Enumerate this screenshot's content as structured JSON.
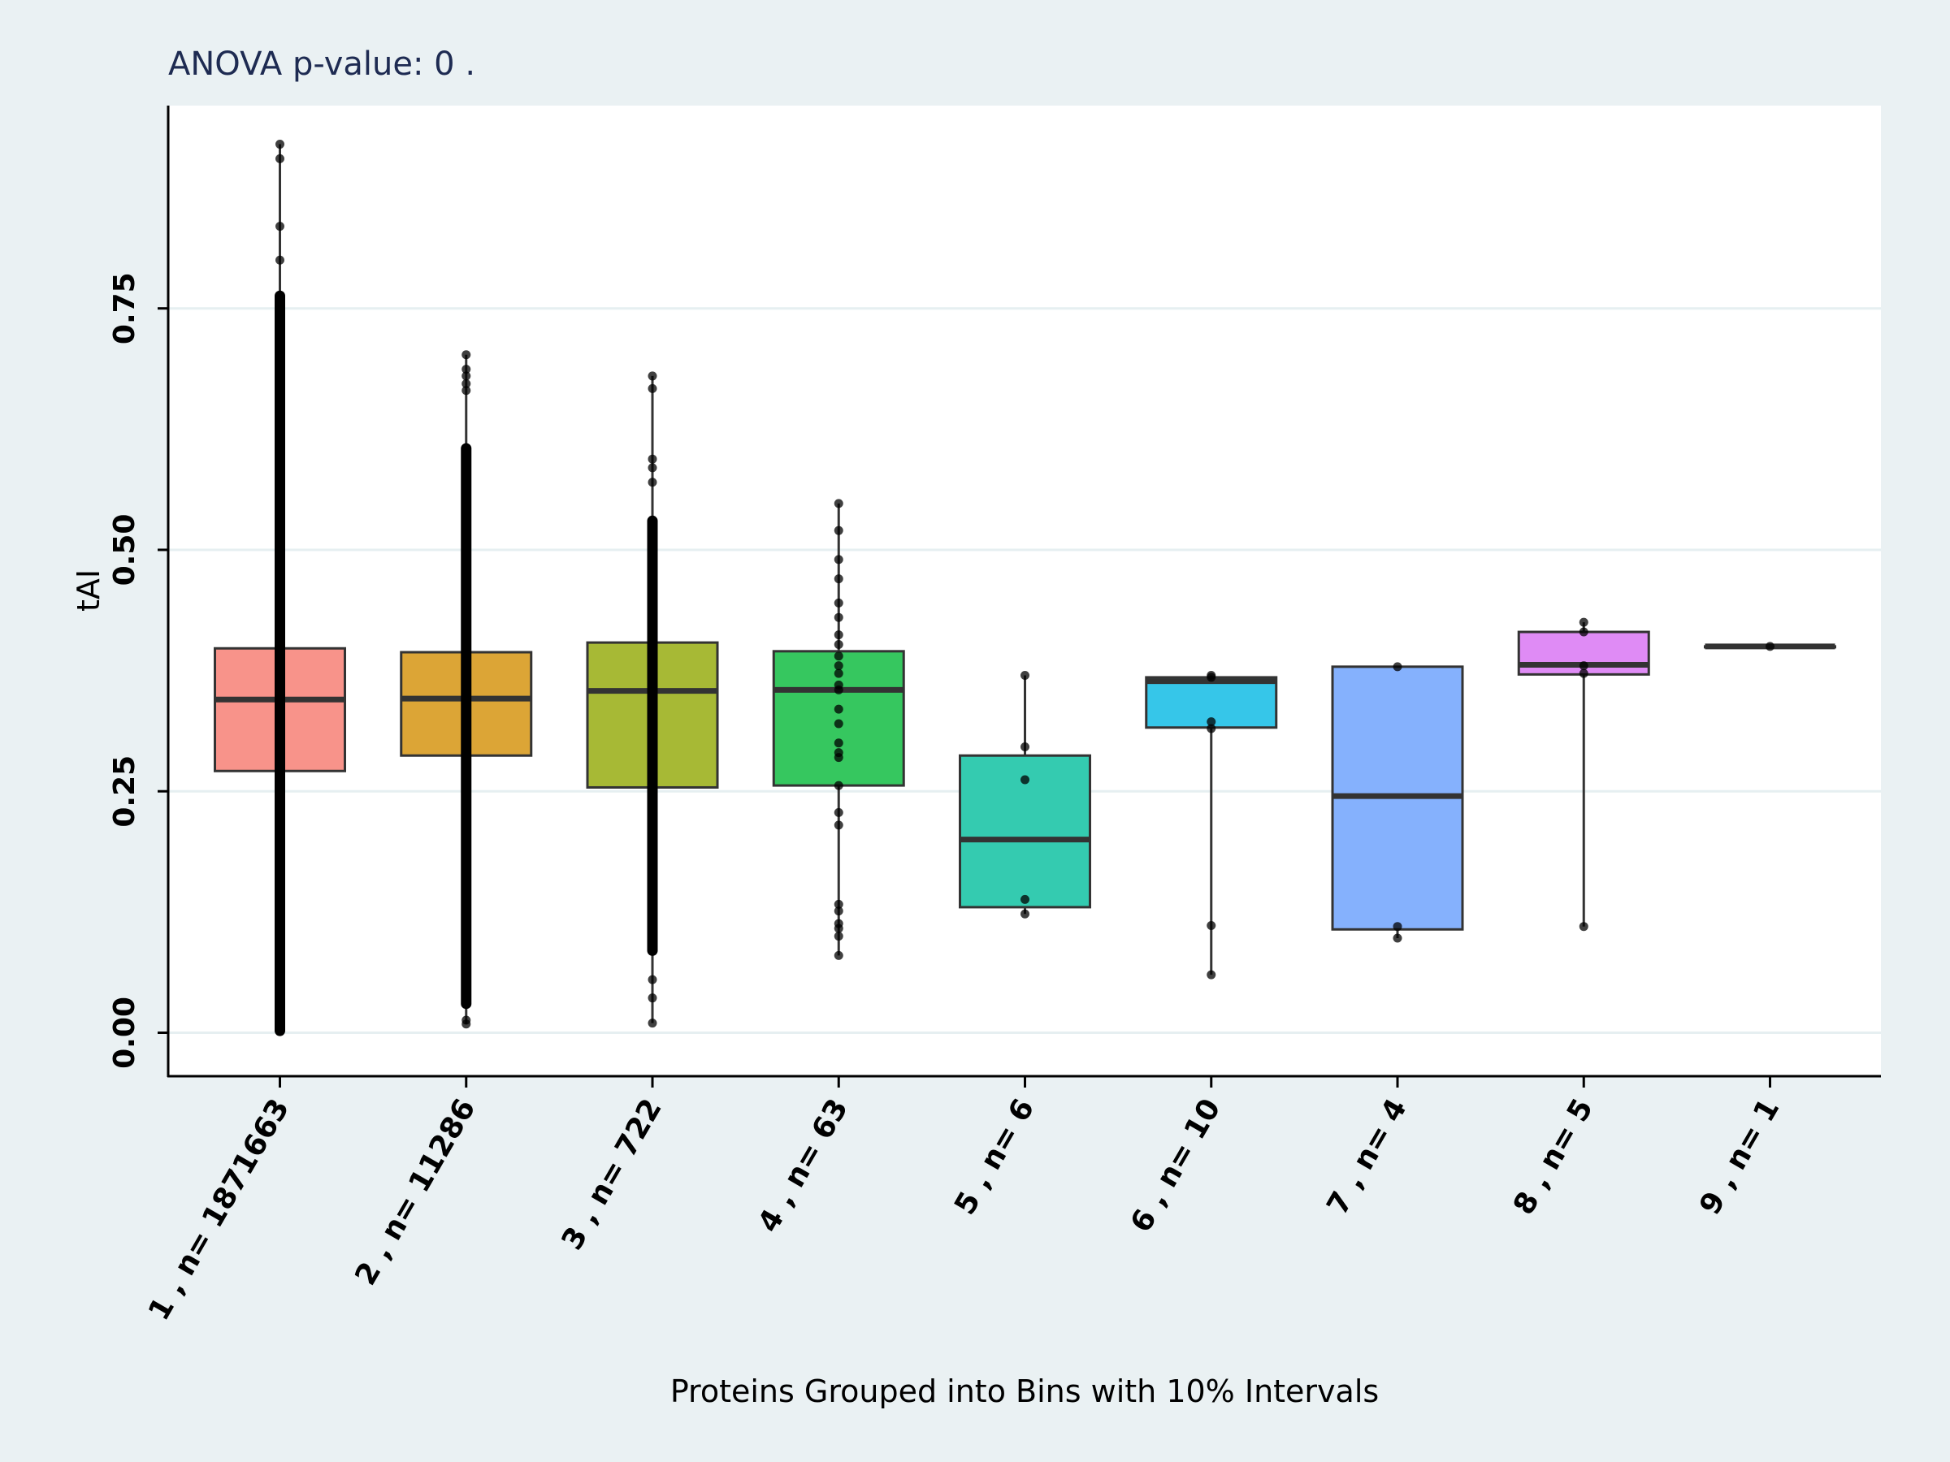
{
  "chart_data": {
    "type": "box",
    "title": "ANOVA p-value:  0 .",
    "xlabel": "Proteins Grouped into Bins with 10% Intervals",
    "ylabel": "tAI",
    "ylim": [
      -0.045,
      0.96
    ],
    "yticks": [
      0.0,
      0.25,
      0.5,
      0.75
    ],
    "ytick_labels": [
      "0.00",
      "0.25",
      "0.50",
      "0.75"
    ],
    "grid": true,
    "categories": [
      "1 , n= 1871663",
      "2 , n= 11286",
      "3 , n= 722",
      "4 , n= 63",
      "5 , n= 6",
      "6 , n= 10",
      "7 , n= 4",
      "8 , n= 5",
      "9 , n= 1"
    ],
    "series": [
      {
        "label": "1 , n= 1871663",
        "color": "#f8938a",
        "q1": 0.271,
        "median": 0.345,
        "q3": 0.398,
        "points": {
          "dense": [
            0.002,
            0.763
          ],
          "sparse": [
            0.8,
            0.835,
            0.905,
            0.92
          ]
        }
      },
      {
        "label": "2 , n= 11286",
        "color": "#dca536",
        "q1": 0.287,
        "median": 0.346,
        "q3": 0.394,
        "points": {
          "dense": [
            0.03,
            0.605
          ],
          "sparse": [
            0.009,
            0.013,
            0.665,
            0.672,
            0.68,
            0.687,
            0.702
          ]
        }
      },
      {
        "label": "3 , n= 722",
        "color": "#a7b935",
        "q1": 0.254,
        "median": 0.354,
        "q3": 0.404,
        "points": {
          "dense": [
            0.085,
            0.53
          ],
          "sparse": [
            0.01,
            0.036,
            0.055,
            0.57,
            0.585,
            0.594,
            0.667,
            0.68
          ]
        }
      },
      {
        "label": "4 , n= 63",
        "color": "#36c75f",
        "q1": 0.256,
        "median": 0.355,
        "q3": 0.395,
        "points": {
          "dense": [],
          "sparse": [
            0.08,
            0.1,
            0.108,
            0.113,
            0.126,
            0.133,
            0.215,
            0.228,
            0.256,
            0.285,
            0.29,
            0.3,
            0.32,
            0.335,
            0.355,
            0.36,
            0.372,
            0.38,
            0.39,
            0.402,
            0.412,
            0.43,
            0.445,
            0.47,
            0.49,
            0.52,
            0.548
          ]
        }
      },
      {
        "label": "5 , n= 6",
        "color": "#34cbb0",
        "q1": 0.13,
        "median": 0.2,
        "q3": 0.287,
        "points": {
          "dense": [],
          "sparse": [
            0.123,
            0.138,
            0.262,
            0.296,
            0.37
          ]
        }
      },
      {
        "label": "6 , n= 10",
        "color": "#36c6e9",
        "q1": 0.316,
        "median": 0.364,
        "q3": 0.368,
        "points": {
          "dense": [],
          "sparse": [
            0.06,
            0.111,
            0.315,
            0.322,
            0.368,
            0.37
          ]
        }
      },
      {
        "label": "7 , n= 4",
        "color": "#85b1fd",
        "q1": 0.107,
        "median": 0.245,
        "q3": 0.379,
        "points": {
          "dense": [],
          "sparse": [
            0.098,
            0.11,
            0.379
          ]
        }
      },
      {
        "label": "8 , n= 5",
        "color": "#df8bf5",
        "q1": 0.371,
        "median": 0.381,
        "q3": 0.415,
        "points": {
          "dense": [],
          "sparse": [
            0.11,
            0.372,
            0.38,
            0.415,
            0.425
          ]
        }
      },
      {
        "label": "9 , n= 1",
        "color": "#f07fc6",
        "q1": 0.4,
        "median": 0.4,
        "q3": 0.4,
        "points": {
          "dense": [],
          "sparse": [
            0.4
          ]
        }
      }
    ]
  }
}
